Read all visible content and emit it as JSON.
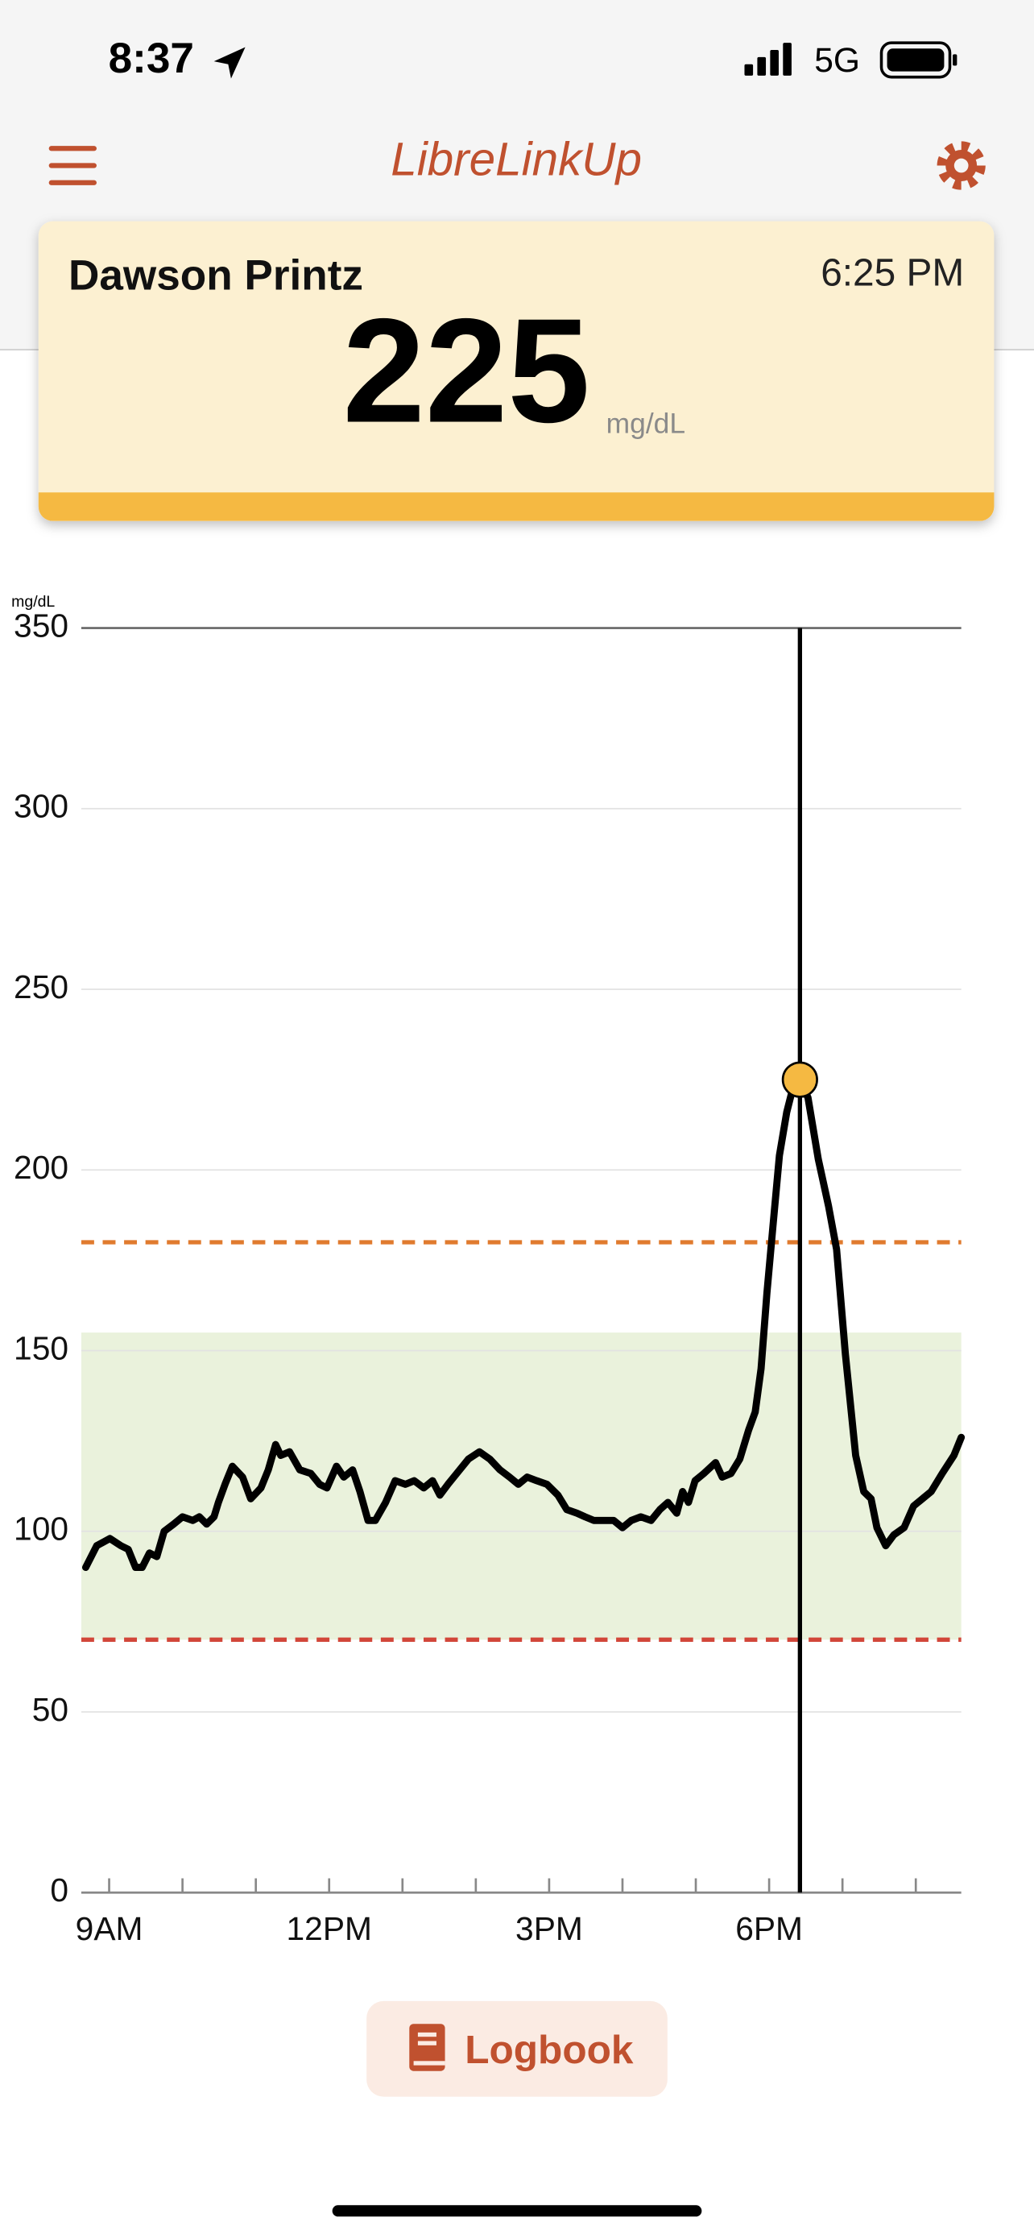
{
  "status_bar": {
    "time": "8:37",
    "network": "5G"
  },
  "header": {
    "title": "LibreLinkUp"
  },
  "card": {
    "name": "Dawson Printz",
    "time": "6:25 PM",
    "reading": 225,
    "unit": "mg/dL"
  },
  "chart_data": {
    "type": "line",
    "y_label": "mg/dL",
    "x": [
      8.68,
      8.83,
      9.01,
      9.16,
      9.26,
      9.36,
      9.45,
      9.55,
      9.65,
      9.75,
      9.88,
      10.0,
      10.14,
      10.23,
      10.33,
      10.43,
      10.49,
      10.58,
      10.68,
      10.82,
      10.93,
      11.07,
      11.17,
      11.27,
      11.34,
      11.46,
      11.6,
      11.75,
      11.87,
      11.97,
      12.1,
      12.2,
      12.32,
      12.42,
      12.53,
      12.63,
      12.77,
      12.9,
      13.04,
      13.16,
      13.29,
      13.41,
      13.51,
      13.62,
      13.74,
      13.9,
      14.05,
      14.19,
      14.33,
      14.46,
      14.58,
      14.7,
      14.83,
      14.97,
      15.12,
      15.24,
      15.38,
      15.49,
      15.61,
      15.75,
      15.88,
      16.0,
      16.12,
      16.25,
      16.39,
      16.51,
      16.62,
      16.74,
      16.82,
      16.9,
      16.99,
      17.11,
      17.27,
      17.36,
      17.48,
      17.6,
      17.72,
      17.81,
      17.89,
      17.97,
      18.05,
      18.14,
      18.24,
      18.34,
      18.42,
      18.53,
      18.67,
      18.81,
      18.92,
      19.04,
      19.18,
      19.29,
      19.39,
      19.47,
      19.59,
      19.7,
      19.84,
      19.97,
      20.09,
      20.21,
      20.36,
      20.52,
      20.62
    ],
    "series": [
      {
        "color": "#000000",
        "values": [
          90,
          96,
          98,
          96,
          95,
          90,
          90,
          94,
          93,
          100,
          102,
          104,
          103,
          104,
          102,
          104,
          108,
          113,
          118,
          115,
          109,
          112,
          117,
          124,
          121,
          122,
          117,
          116,
          113,
          112,
          118,
          115,
          117,
          111,
          103,
          103,
          108,
          114,
          113,
          114,
          112,
          114,
          110,
          113,
          116,
          120,
          122,
          120,
          117,
          115,
          113,
          115,
          114,
          113,
          110,
          106,
          105,
          104,
          103,
          103,
          103,
          101,
          103,
          104,
          103,
          106,
          108,
          105,
          111,
          108,
          114,
          116,
          119,
          115,
          116,
          120,
          128,
          133,
          145,
          166,
          184,
          204,
          216,
          224,
          225,
          220,
          203,
          190,
          178,
          149,
          121,
          111,
          109,
          101,
          96,
          99,
          101,
          107,
          109,
          111,
          116,
          121,
          126
        ]
      }
    ],
    "xlim": [
      8.62,
      20.62
    ],
    "ylim": [
      0,
      350
    ],
    "yticks": [
      0,
      50,
      100,
      150,
      200,
      250,
      300,
      350
    ],
    "xticks": [
      {
        "value": 9,
        "label": "9AM"
      },
      {
        "value": 12,
        "label": "12PM"
      },
      {
        "value": 15,
        "label": "3PM"
      },
      {
        "value": 18,
        "label": "6PM"
      }
    ],
    "x_minor_ticks": [
      10,
      11,
      13,
      14,
      16,
      17,
      19,
      20
    ],
    "grid": true,
    "target_range": [
      70,
      155
    ],
    "target_color": "#eaf2dc",
    "high_line": 180,
    "high_color": "#e07b2e",
    "low_line": 70,
    "low_color": "#d2473a",
    "marker_x": 18.42,
    "marker_color": "#f5b942"
  },
  "button": {
    "label": "Logbook"
  }
}
